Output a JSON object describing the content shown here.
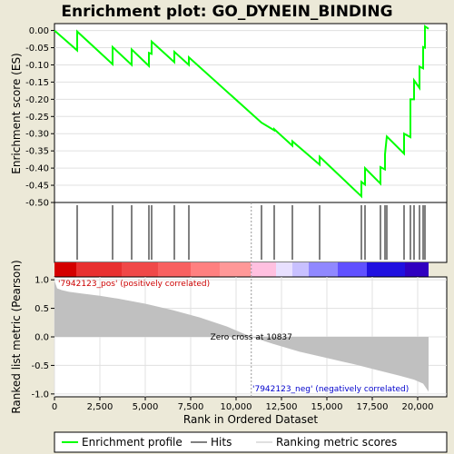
{
  "title": "Enrichment plot: GO_DYNEIN_BINDING",
  "colors": {
    "es_line": "#00ff00",
    "hits": "#000000",
    "metric_fill": "#c0c0c0",
    "pos_label": "#cc0000",
    "neg_label": "#0000cc",
    "background": "#ece9d8"
  },
  "chart_data": [
    {
      "type": "line",
      "name": "enrichment-profile",
      "ylabel": "Enrichment score (ES)",
      "ylim": [
        -0.5,
        0.02
      ],
      "xlim": [
        0,
        21600
      ],
      "yticks": [
        0.0,
        -0.05,
        -0.1,
        -0.15,
        -0.2,
        -0.25,
        -0.3,
        -0.35,
        -0.4,
        -0.45,
        -0.5
      ],
      "ytick_labels": [
        "0.00",
        "-0.05",
        "-0.10",
        "-0.15",
        "-0.20",
        "-0.25",
        "-0.30",
        "-0.35",
        "-0.40",
        "-0.45",
        "-0.50"
      ],
      "grid": true,
      "x": [
        0,
        1250,
        1250,
        3200,
        3200,
        4250,
        4250,
        5200,
        5200,
        5350,
        5350,
        6600,
        6600,
        7400,
        7400,
        11400,
        12100,
        12100,
        13100,
        13100,
        14600,
        14600,
        16900,
        16900,
        17100,
        17100,
        17950,
        17950,
        18200,
        18200,
        18300,
        18300,
        19250,
        19250,
        19600,
        19600,
        19800,
        19800,
        20100,
        20100,
        20300,
        20300,
        20400,
        20400,
        20600
      ],
      "y": [
        0.0,
        -0.058,
        -0.003,
        -0.098,
        -0.048,
        -0.1,
        -0.055,
        -0.103,
        -0.065,
        -0.068,
        -0.032,
        -0.092,
        -0.062,
        -0.1,
        -0.078,
        -0.268,
        -0.29,
        -0.287,
        -0.335,
        -0.322,
        -0.39,
        -0.367,
        -0.482,
        -0.44,
        -0.448,
        -0.4,
        -0.445,
        -0.397,
        -0.404,
        -0.36,
        -0.308,
        -0.308,
        -0.358,
        -0.3,
        -0.31,
        -0.2,
        -0.2,
        -0.145,
        -0.167,
        -0.105,
        -0.11,
        -0.048,
        -0.05,
        0.012,
        0.005
      ]
    },
    {
      "type": "scatter",
      "name": "hits",
      "x": [
        1250,
        3200,
        4250,
        5200,
        5350,
        6600,
        7400,
        11400,
        12100,
        13100,
        14600,
        16900,
        17100,
        17950,
        18200,
        18300,
        19250,
        19600,
        19800,
        20100,
        20300,
        20400
      ]
    },
    {
      "type": "heatmap",
      "name": "ranked-list-color-bar",
      "colors": [
        "#d40000",
        "#e83030",
        "#f04848",
        "#f86060",
        "#ff8080",
        "#ff9898",
        "#ffc0e0",
        "#e8e0ff",
        "#c8c0ff",
        "#9088ff",
        "#6050ff",
        "#2010e0",
        "#3000c0"
      ],
      "breaks": [
        0,
        1200,
        3700,
        5700,
        7500,
        9100,
        10800,
        12200,
        13100,
        14000,
        15600,
        17200,
        19300,
        20600
      ]
    },
    {
      "type": "area",
      "name": "ranked-list-metric",
      "xlabel": "Rank in Ordered Dataset",
      "ylabel": "Ranked list metric (Pearson)",
      "ylim": [
        -1.05,
        1.05
      ],
      "xlim": [
        0,
        21600
      ],
      "yticks": [
        1.0,
        0.5,
        0.0,
        -0.5,
        -1.0
      ],
      "ytick_labels": [
        "1.0",
        "0.5",
        "0.0",
        "-0.5",
        "-1.0"
      ],
      "xticks": [
        0,
        2500,
        5000,
        7500,
        10000,
        12500,
        15000,
        17500,
        20000
      ],
      "xtick_labels": [
        "0",
        "2,500",
        "5,000",
        "7,500",
        "10,000",
        "12,500",
        "15,000",
        "17,500",
        "20,000"
      ],
      "grid": true,
      "x": [
        0,
        150,
        400,
        800,
        1500,
        2500,
        3500,
        5000,
        6500,
        8000,
        9500,
        10837,
        12000,
        13500,
        15000,
        16500,
        18000,
        19000,
        19800,
        20300,
        20600
      ],
      "y": [
        0.98,
        0.85,
        0.82,
        0.79,
        0.76,
        0.72,
        0.67,
        0.58,
        0.47,
        0.34,
        0.18,
        0.0,
        -0.12,
        -0.26,
        -0.37,
        -0.48,
        -0.6,
        -0.68,
        -0.75,
        -0.82,
        -0.96
      ],
      "zero_cross": 10837,
      "annotations": {
        "pos": "'7942123_pos' (positively correlated)",
        "neg": "'7942123_neg' (negatively correlated)",
        "zero_cross": "Zero cross at 10837"
      }
    }
  ],
  "legend": {
    "items": [
      {
        "label": "Enrichment profile",
        "color": "#00ff00"
      },
      {
        "label": "Hits",
        "color": "#000000"
      },
      {
        "label": "Ranking metric scores",
        "color": "#c0c0c0"
      }
    ]
  }
}
